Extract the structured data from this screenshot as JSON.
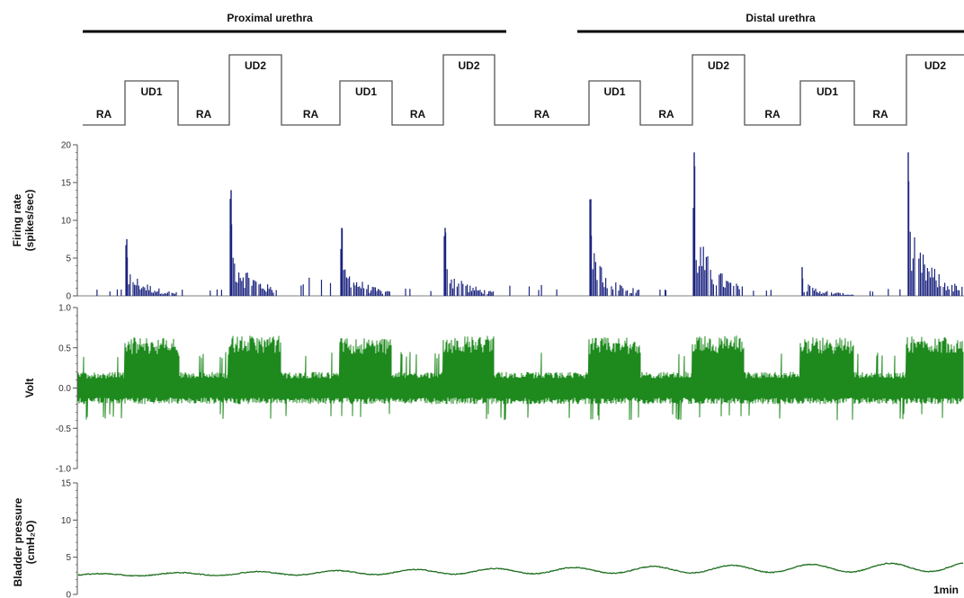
{
  "chart_data": {
    "type": "line",
    "section_labels": {
      "proximal": "Proximal urethra",
      "distal": "Distal urethra"
    },
    "protocol": {
      "phases": [
        {
          "label": "RA",
          "level": 0
        },
        {
          "label": "UD1",
          "level": 1
        },
        {
          "label": "RA",
          "level": 0
        },
        {
          "label": "UD2",
          "level": 2
        },
        {
          "label": "RA",
          "level": 0
        },
        {
          "label": "UD1",
          "level": 1
        },
        {
          "label": "RA",
          "level": 0
        },
        {
          "label": "UD2",
          "level": 2
        },
        {
          "label": "RA",
          "level": 0
        },
        {
          "label": "UD1",
          "level": 1
        },
        {
          "label": "RA",
          "level": 0
        },
        {
          "label": "UD2",
          "level": 2
        },
        {
          "label": "RA",
          "level": 0
        },
        {
          "label": "UD1",
          "level": 1
        },
        {
          "label": "RA",
          "level": 0
        },
        {
          "label": "UD2",
          "level": 2
        }
      ]
    },
    "panels": {
      "firing_rate": {
        "type": "bar",
        "ylabel_lines": [
          "Firing rate",
          "(spikes/sec)"
        ],
        "ylim": [
          0,
          20
        ],
        "yticks": [
          "0",
          "5",
          "10",
          "15",
          "20"
        ],
        "color": "#1a237e",
        "peaks": [
          {
            "phase": "RA",
            "peak": 1
          },
          {
            "phase": "UD1",
            "peak": 7.5
          },
          {
            "phase": "RA",
            "peak": 1
          },
          {
            "phase": "UD2",
            "peak": 14
          },
          {
            "phase": "RA",
            "peak": 2.5
          },
          {
            "phase": "UD1",
            "peak": 9
          },
          {
            "phase": "RA",
            "peak": 1
          },
          {
            "phase": "UD2",
            "peak": 9
          },
          {
            "phase": "RA",
            "peak": 1.5
          },
          {
            "phase": "UD1",
            "peak": 12.8
          },
          {
            "phase": "RA",
            "peak": 1
          },
          {
            "phase": "UD2",
            "peak": 19
          },
          {
            "phase": "RA",
            "peak": 1
          },
          {
            "phase": "UD1",
            "peak": 3.8
          },
          {
            "phase": "RA",
            "peak": 1
          },
          {
            "phase": "UD2",
            "peak": 19
          }
        ]
      },
      "volt": {
        "type": "line",
        "ylabel_lines": [
          "Volt"
        ],
        "ylim": [
          -1.0,
          1.0
        ],
        "yticks": [
          "1.0",
          "0.5",
          "0.0",
          "-0.5",
          "-1.0"
        ],
        "color": "#1e8a1e",
        "baseline_noise": 0.12,
        "burst_amplitude": {
          "RA": 0.15,
          "UD1": 0.6,
          "UD2": 0.62
        }
      },
      "bladder_pressure": {
        "type": "line",
        "ylabel_lines": [
          "Bladder pressure",
          "(cmH₂O)"
        ],
        "ylim": [
          0,
          15
        ],
        "yticks": [
          "15",
          "10",
          "5",
          "0"
        ],
        "color": "#1e6e1e",
        "start_value": 2.6,
        "end_value": 3.7
      }
    },
    "scale_bar": "1min"
  }
}
